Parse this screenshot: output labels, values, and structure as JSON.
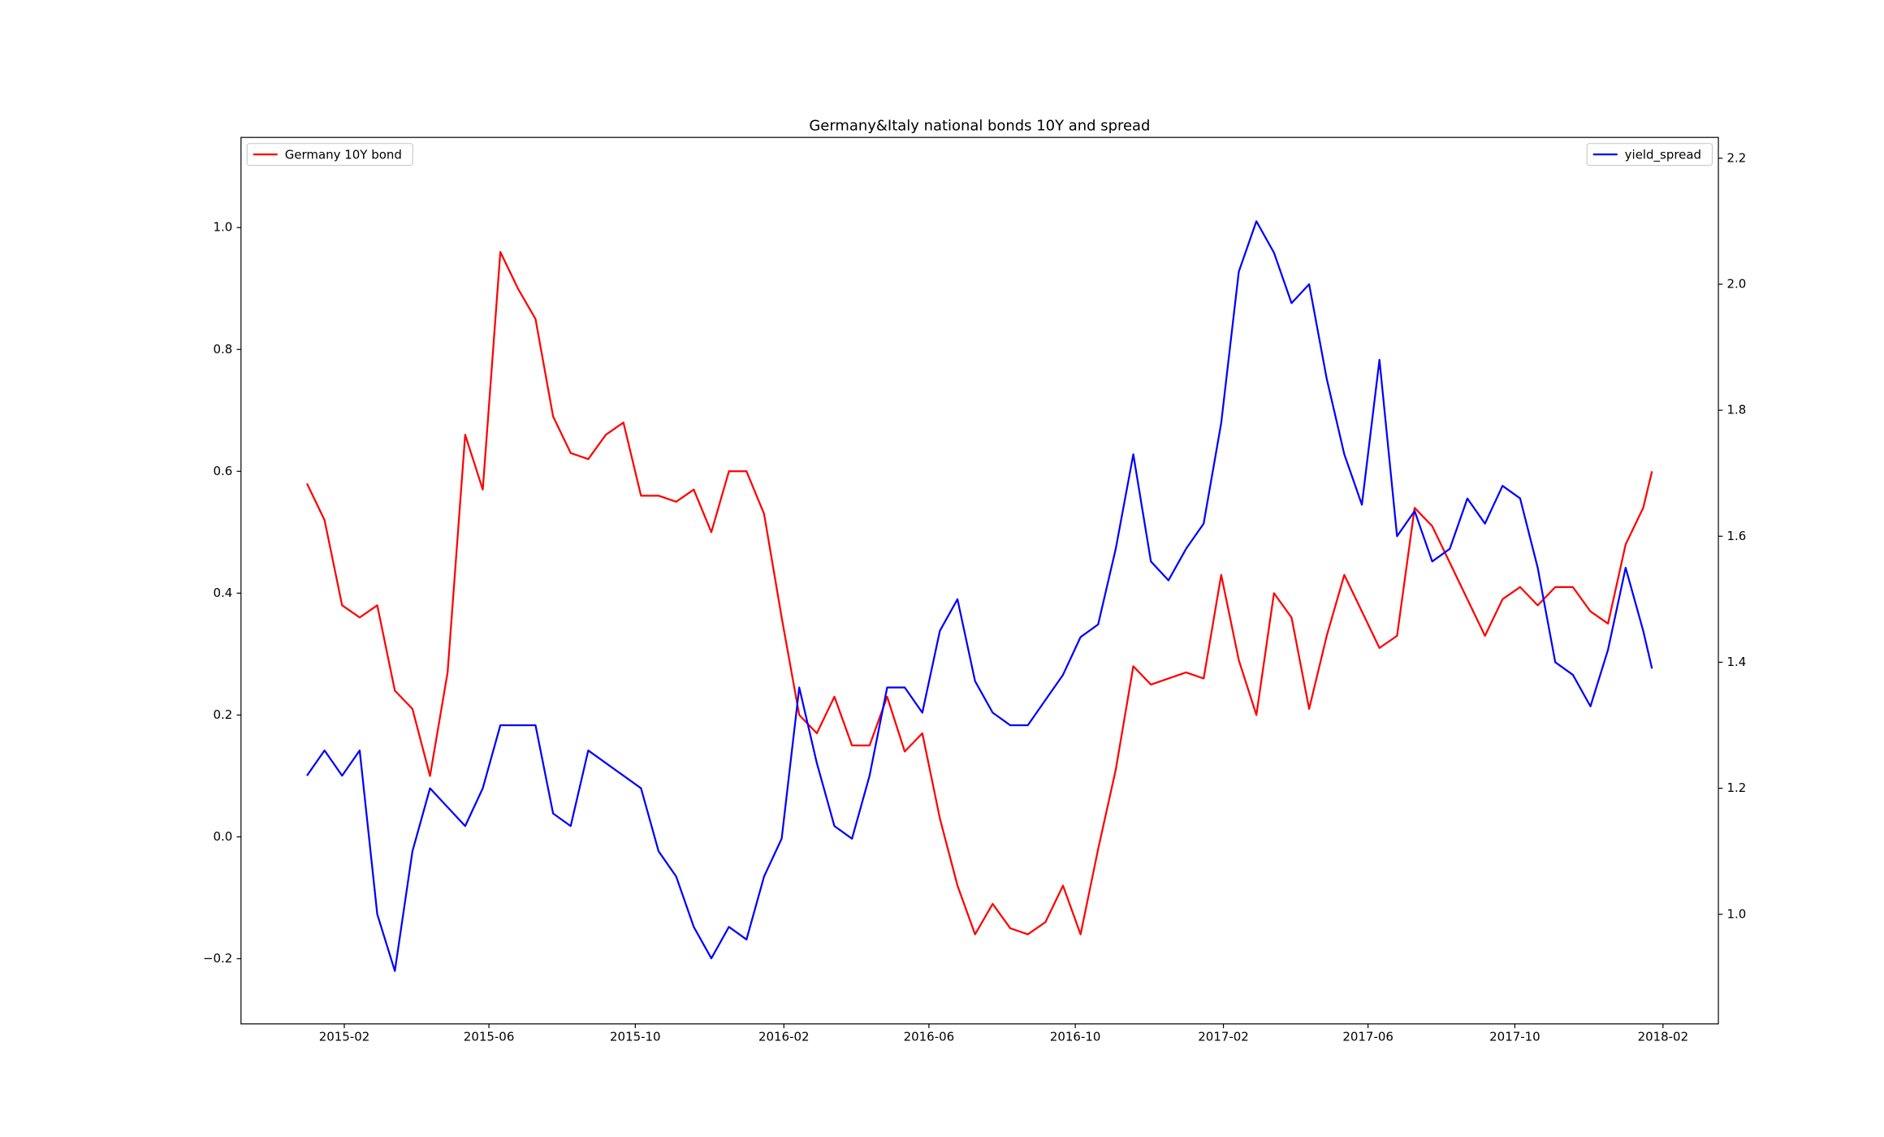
{
  "chart_data": {
    "type": "line",
    "title": "Germany&Italy national bonds 10Y and spread",
    "x": [
      2015.0,
      2015.04,
      2015.08,
      2015.12,
      2015.16,
      2015.2,
      2015.24,
      2015.28,
      2015.32,
      2015.36,
      2015.4,
      2015.44,
      2015.48,
      2015.52,
      2015.56,
      2015.6,
      2015.64,
      2015.68,
      2015.72,
      2015.76,
      2015.8,
      2015.84,
      2015.88,
      2015.92,
      2015.96,
      2016.0,
      2016.04,
      2016.08,
      2016.12,
      2016.16,
      2016.2,
      2016.24,
      2016.28,
      2016.32,
      2016.36,
      2016.4,
      2016.44,
      2016.48,
      2016.52,
      2016.56,
      2016.6,
      2016.64,
      2016.68,
      2016.72,
      2016.76,
      2016.8,
      2016.84,
      2016.88,
      2016.92,
      2016.96,
      2017.0,
      2017.04,
      2017.08,
      2017.12,
      2017.16,
      2017.2,
      2017.24,
      2017.28,
      2017.32,
      2017.36,
      2017.4,
      2017.44,
      2017.48,
      2017.52,
      2017.56,
      2017.6,
      2017.64,
      2017.68,
      2017.72,
      2017.76,
      2017.8,
      2017.84,
      2017.88,
      2017.92,
      2017.96,
      2018.0,
      2018.04,
      2018.06
    ],
    "series": [
      {
        "name": "Germany 10Y bond",
        "color": "#ff0000",
        "axis": "y",
        "legend": "upper left",
        "values": [
          0.58,
          0.52,
          0.38,
          0.36,
          0.38,
          0.24,
          0.21,
          0.1,
          0.27,
          0.66,
          0.57,
          0.96,
          0.9,
          0.85,
          0.69,
          0.63,
          0.62,
          0.66,
          0.68,
          0.56,
          0.56,
          0.55,
          0.57,
          0.5,
          0.6,
          0.6,
          0.53,
          0.36,
          0.2,
          0.17,
          0.23,
          0.15,
          0.15,
          0.23,
          0.14,
          0.17,
          0.03,
          -0.08,
          -0.16,
          -0.11,
          -0.15,
          -0.16,
          -0.14,
          -0.08,
          -0.16,
          -0.02,
          0.11,
          0.28,
          0.25,
          0.26,
          0.27,
          0.26,
          0.43,
          0.29,
          0.2,
          0.4,
          0.36,
          0.21,
          0.33,
          0.43,
          0.37,
          0.31,
          0.33,
          0.54,
          0.51,
          0.45,
          0.39,
          0.33,
          0.39,
          0.41,
          0.38,
          0.41,
          0.41,
          0.37,
          0.35,
          0.48,
          0.54,
          0.6
        ]
      },
      {
        "name": "yield_spread",
        "color": "#0000ff",
        "axis": "y2",
        "legend": "upper right",
        "values": [
          1.22,
          1.26,
          1.22,
          1.26,
          1.0,
          0.91,
          1.1,
          1.2,
          1.17,
          1.14,
          1.2,
          1.3,
          1.3,
          1.3,
          1.16,
          1.14,
          1.26,
          1.24,
          1.22,
          1.2,
          1.1,
          1.06,
          0.98,
          0.93,
          0.98,
          0.96,
          1.06,
          1.12,
          1.36,
          1.24,
          1.14,
          1.12,
          1.22,
          1.36,
          1.36,
          1.32,
          1.45,
          1.5,
          1.37,
          1.32,
          1.3,
          1.3,
          1.34,
          1.38,
          1.44,
          1.46,
          1.58,
          1.73,
          1.56,
          1.53,
          1.58,
          1.62,
          1.78,
          2.02,
          2.1,
          2.05,
          1.97,
          2.0,
          1.85,
          1.73,
          1.65,
          1.88,
          1.6,
          1.64,
          1.56,
          1.58,
          1.66,
          1.62,
          1.68,
          1.66,
          1.55,
          1.4,
          1.38,
          1.33,
          1.42,
          1.55,
          1.45,
          1.39
        ]
      }
    ],
    "xlim": [
      2014.85,
      2018.211
    ],
    "xticks": [
      {
        "value": 2015.085,
        "label": "2015-02"
      },
      {
        "value": 2015.414,
        "label": "2015-06"
      },
      {
        "value": 2015.747,
        "label": "2015-10"
      },
      {
        "value": 2016.085,
        "label": "2016-02"
      },
      {
        "value": 2016.415,
        "label": "2016-06"
      },
      {
        "value": 2016.748,
        "label": "2016-10"
      },
      {
        "value": 2017.085,
        "label": "2017-02"
      },
      {
        "value": 2017.414,
        "label": "2017-06"
      },
      {
        "value": 2017.748,
        "label": "2017-10"
      },
      {
        "value": 2018.085,
        "label": "2018-02"
      }
    ],
    "ylim": [
      -0.307,
      1.148
    ],
    "yticks": [
      {
        "value": -0.2,
        "label": "−0.2"
      },
      {
        "value": 0,
        "label": "0.0"
      },
      0.2,
      0.4,
      0.6,
      0.8,
      {
        "value": 1,
        "label": "1.0"
      }
    ],
    "y2lim": [
      0.826,
      2.233
    ],
    "y2ticks": [
      {
        "value": 1,
        "label": "1.0"
      },
      1.2,
      1.4,
      1.6,
      1.8,
      {
        "value": 2,
        "label": "2.0"
      },
      2.2
    ],
    "grid": false
  }
}
